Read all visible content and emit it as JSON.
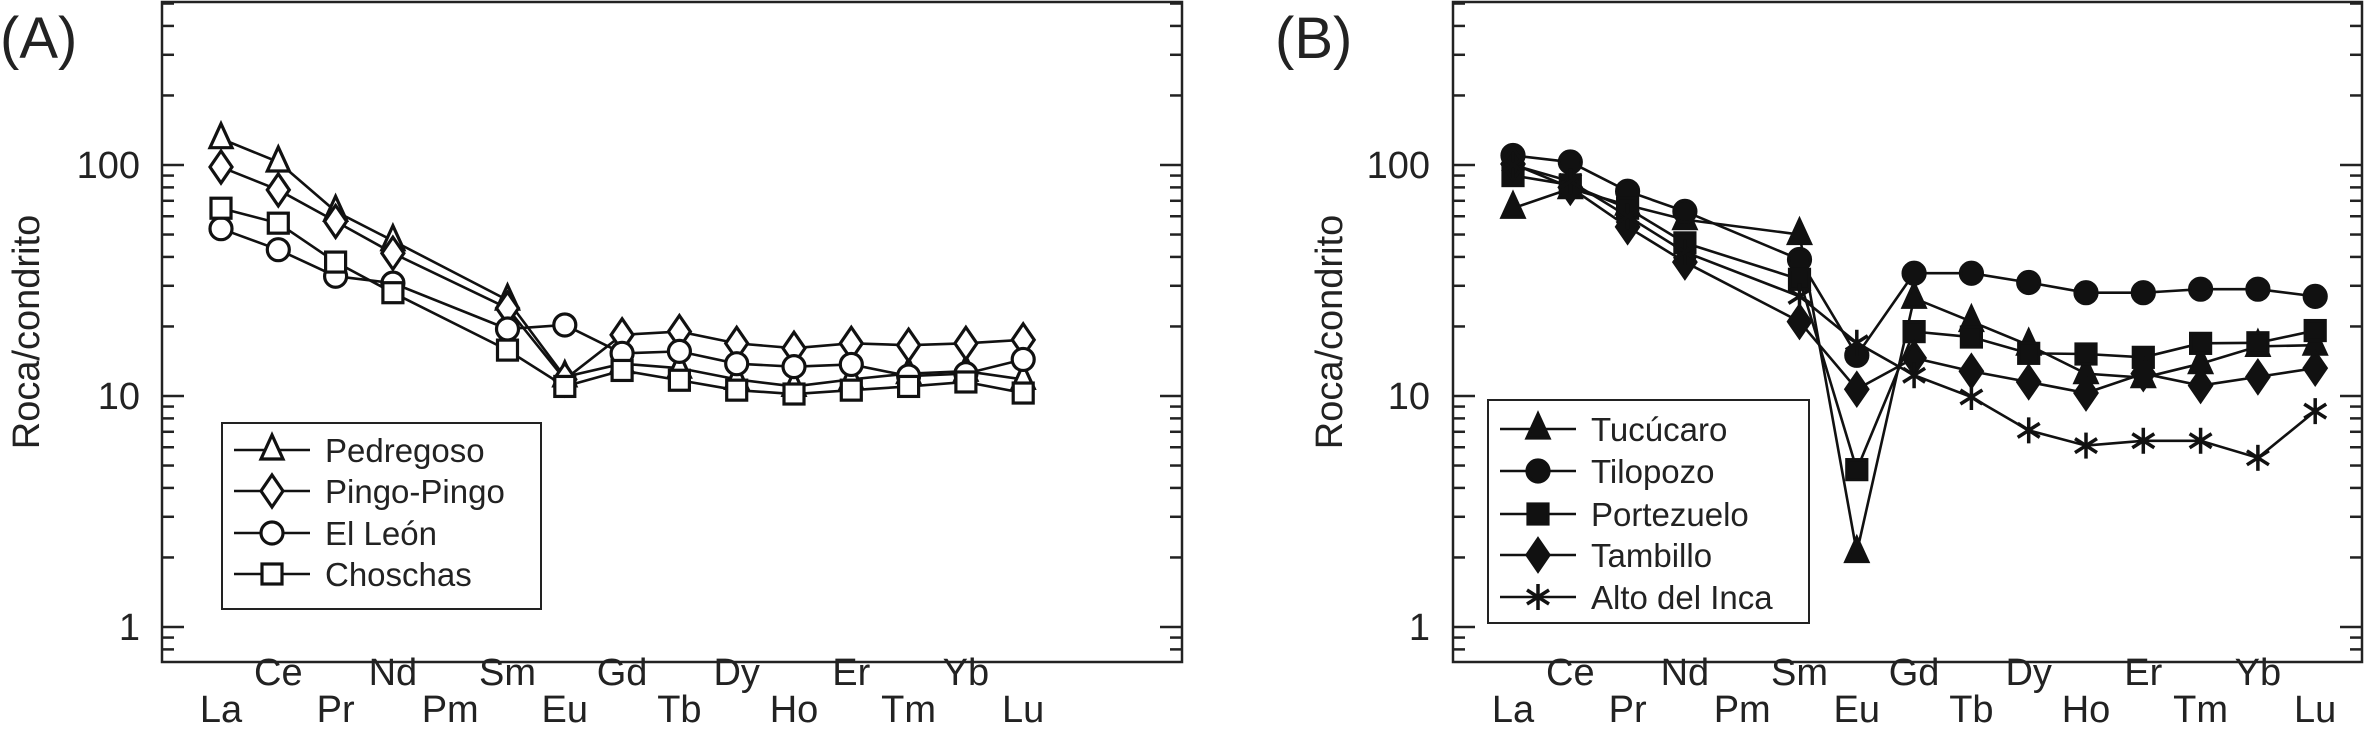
{
  "chart_data": [
    {
      "panel_label": "(A)",
      "type": "line",
      "ylabel": "Roca/condrito",
      "yscale": "log",
      "ylim": [
        0.7,
        500
      ],
      "yticks": [
        "1",
        "10",
        "100"
      ],
      "categories": [
        "La",
        "Ce",
        "Pr",
        "Nd",
        "Pm",
        "Sm",
        "Eu",
        "Gd",
        "Tb",
        "Dy",
        "Ho",
        "Er",
        "Tm",
        "Yb",
        "Lu"
      ],
      "legend_position": "bottom-left",
      "marker_fill": "open",
      "series": [
        {
          "name": "Pedregoso",
          "marker": "triangle",
          "values": [
            130,
            103,
            63,
            47,
            null,
            26,
            12.1,
            13.8,
            13.2,
            11.8,
            11.0,
            11.8,
            12.5,
            12.8,
            11.8
          ]
        },
        {
          "name": "Pingo-Pingo",
          "marker": "diamond",
          "values": [
            98,
            78,
            57,
            41.5,
            null,
            24,
            11.8,
            18.4,
            19,
            16.9,
            16.1,
            16.9,
            16.6,
            16.9,
            17.5
          ]
        },
        {
          "name": "El León",
          "marker": "circle",
          "values": [
            53,
            43,
            33,
            30.8,
            null,
            19.5,
            20.3,
            15.3,
            15.6,
            13.8,
            13.4,
            13.7,
            12.2,
            12.5,
            14.4
          ]
        },
        {
          "name": "Choschas",
          "marker": "square",
          "values": [
            65,
            56,
            38,
            28,
            null,
            15.8,
            11.0,
            12.9,
            11.7,
            10.6,
            10.2,
            10.6,
            11.0,
            11.5,
            10.3
          ]
        }
      ]
    },
    {
      "panel_label": "(B)",
      "type": "line",
      "ylabel": "Roca/condrito",
      "yscale": "log",
      "ylim": [
        0.7,
        500
      ],
      "yticks": [
        "1",
        "10",
        "100"
      ],
      "categories": [
        "La",
        "Ce",
        "Pr",
        "Nd",
        "Pm",
        "Sm",
        "Eu",
        "Gd",
        "Tb",
        "Dy",
        "Ho",
        "Er",
        "Tm",
        "Yb",
        "Lu"
      ],
      "legend_position": "bottom-left",
      "marker_fill": "filled",
      "series": [
        {
          "name": "Tucúcaro",
          "marker": "triangle",
          "values": [
            65,
            79,
            67,
            58,
            null,
            50,
            2.1,
            26.5,
            21,
            16.6,
            12.5,
            12,
            13.8,
            16.4,
            16.6
          ]
        },
        {
          "name": "Tilopozo",
          "marker": "circle",
          "values": [
            110,
            103,
            77,
            63,
            null,
            39,
            15,
            34,
            34,
            31,
            28,
            28,
            29,
            29,
            27
          ]
        },
        {
          "name": "Portezuelo",
          "marker": "square",
          "values": [
            90,
            82,
            65,
            46,
            null,
            32,
            4.8,
            19,
            18,
            15.3,
            15.2,
            14.7,
            16.9,
            17,
            19.2
          ]
        },
        {
          "name": "Tambillo",
          "marker": "diamond",
          "values": [
            101,
            80,
            54,
            38,
            null,
            21,
            10.7,
            14.6,
            12.8,
            11.5,
            10.3,
            12.5,
            11.1,
            12.1,
            13.2
          ]
        },
        {
          "name": "Alto del Inca",
          "marker": "asterisk",
          "values": [
            100,
            85,
            60,
            42,
            null,
            27,
            17,
            12.3,
            9.9,
            7.1,
            6.1,
            6.4,
            6.4,
            5.4,
            8.6
          ]
        }
      ]
    }
  ]
}
